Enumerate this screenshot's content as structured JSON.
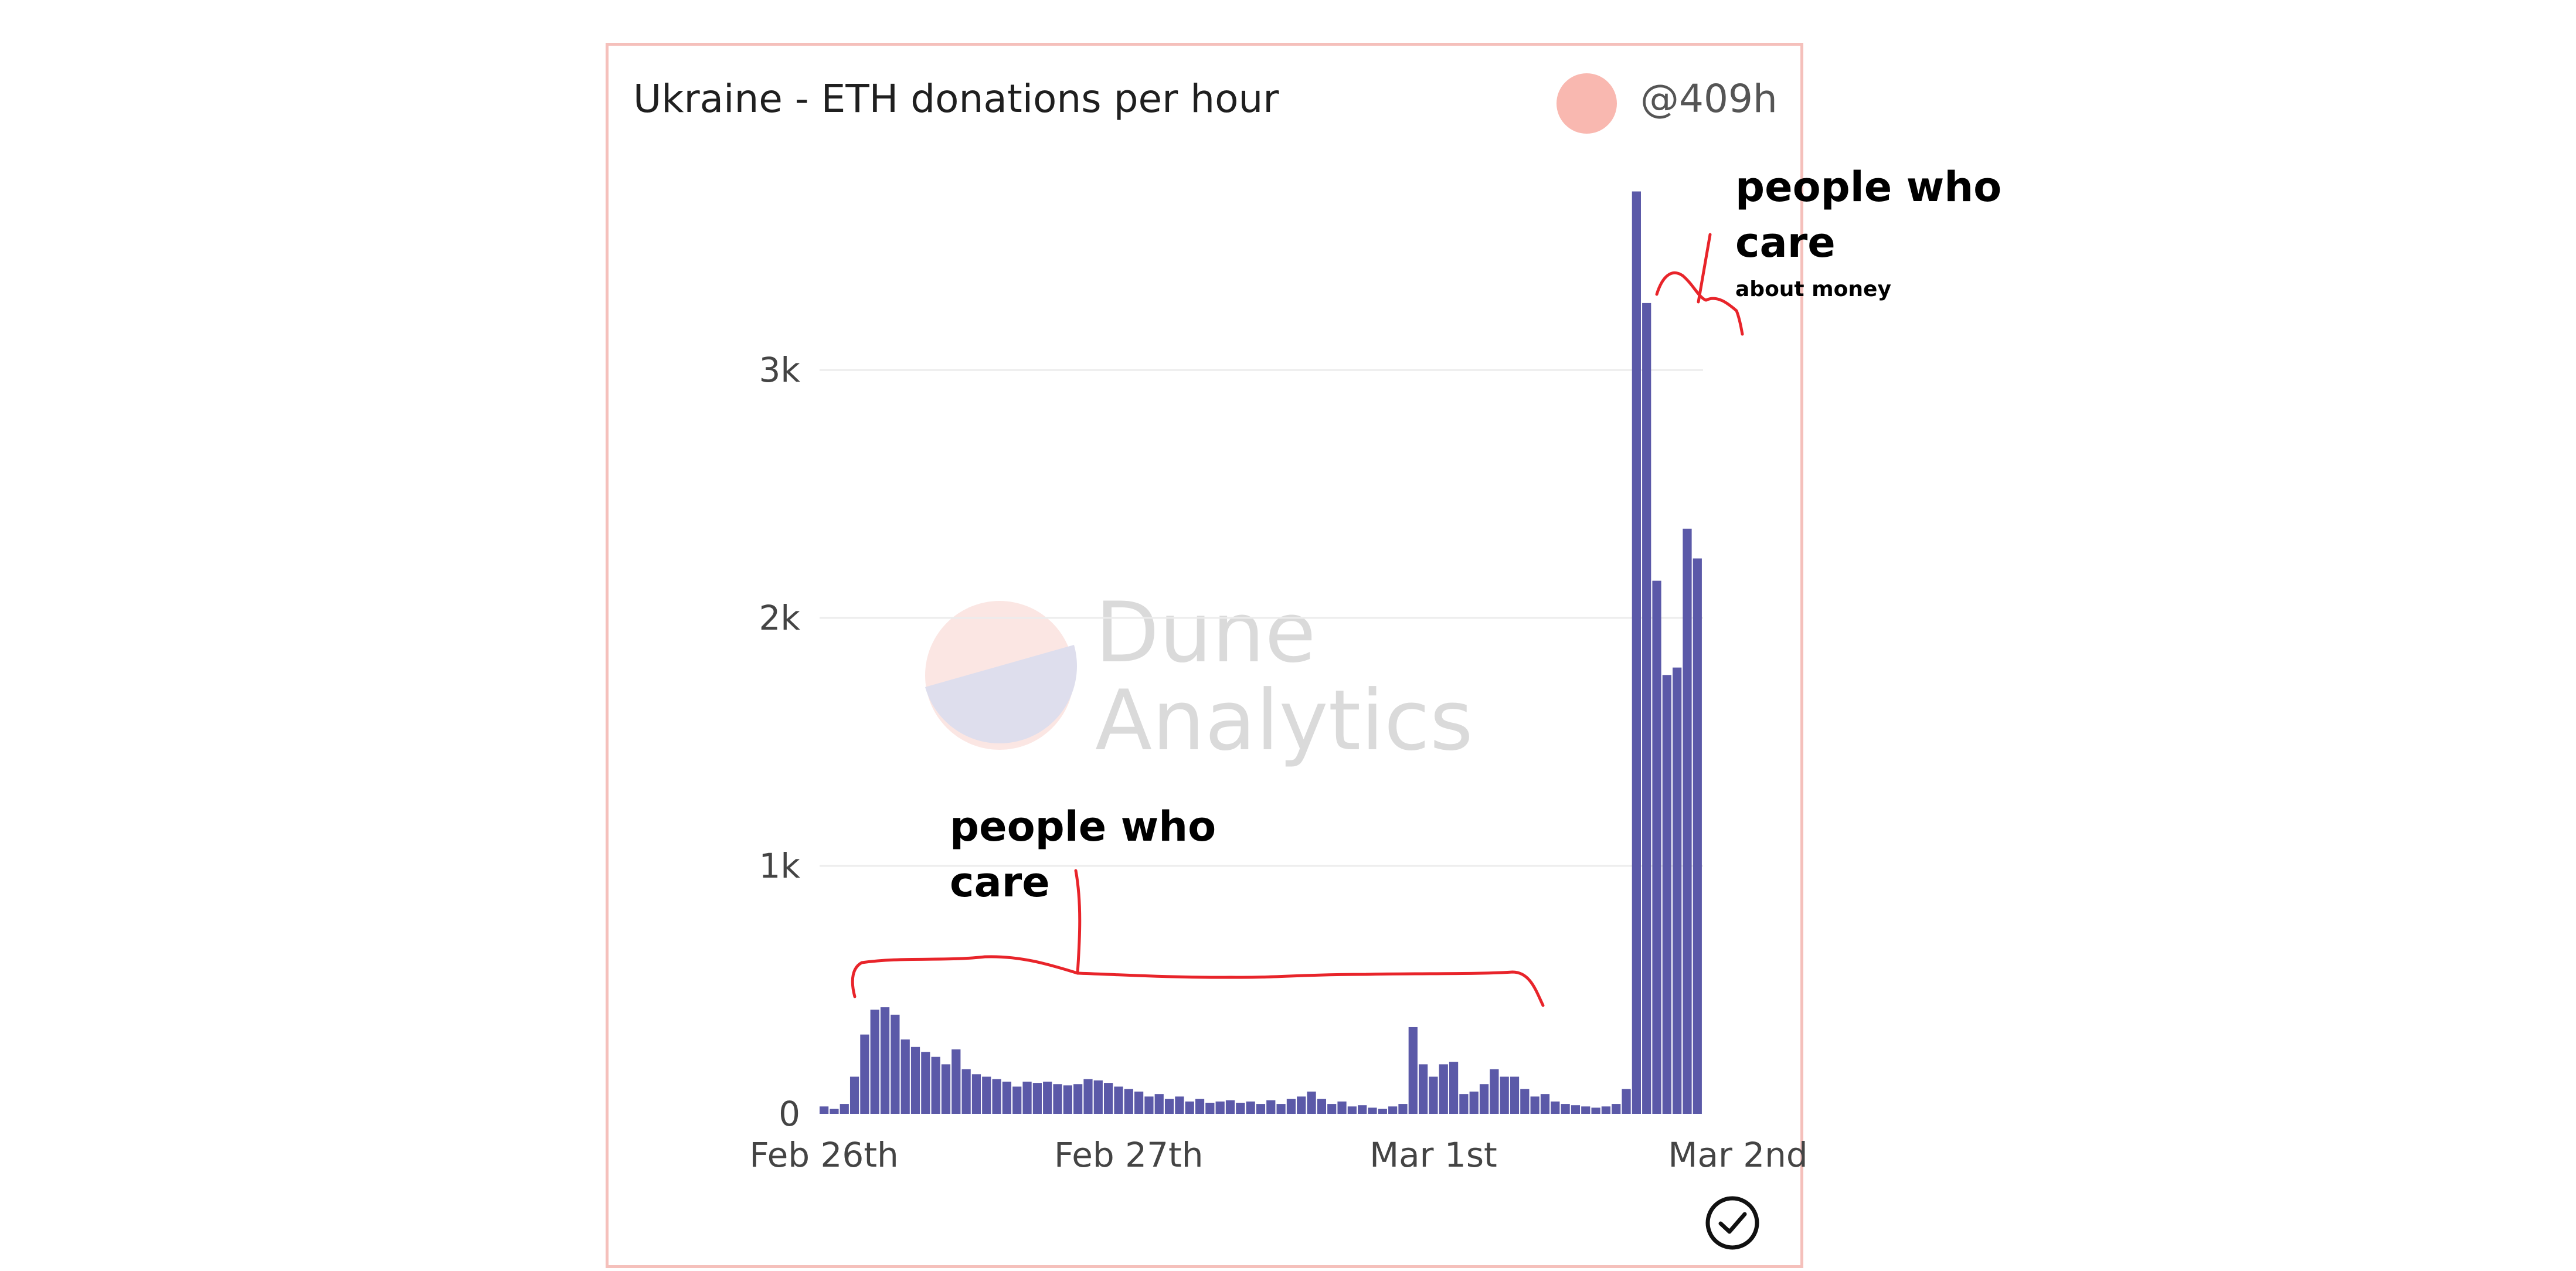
{
  "title": "Ukraine - ETH donations per hour",
  "author": {
    "handle": "@409h"
  },
  "watermark": {
    "line1": "Dune",
    "line2": "Analytics"
  },
  "annotations": {
    "top": "people who\ncare",
    "top_sub": "about money",
    "bottom": "people who\ncare"
  },
  "colors": {
    "bar": "#5b59a8",
    "grid": "#ececec",
    "axis_text": "#444444",
    "annotation_stroke": "#e8242a",
    "border": "#f5c0bb",
    "avatar": "#f9b8b0"
  },
  "chart_data": {
    "type": "bar",
    "title": "Ukraine - ETH donations per hour",
    "xlabel": "",
    "ylabel": "",
    "ylim": [
      0,
      3700
    ],
    "yticks": [
      0,
      1000,
      2000,
      3000
    ],
    "ytick_labels": [
      "0",
      "1k",
      "2k",
      "3k"
    ],
    "xtick_labels": [
      "Feb 26th",
      "Feb 27th",
      "Mar 1st",
      "Mar 2nd"
    ],
    "xtick_positions": [
      0,
      30,
      60,
      90
    ],
    "grid": true,
    "legend": "none",
    "values": [
      30,
      20,
      40,
      150,
      320,
      420,
      430,
      400,
      300,
      270,
      250,
      230,
      200,
      260,
      180,
      160,
      150,
      140,
      130,
      110,
      130,
      125,
      130,
      120,
      115,
      120,
      140,
      135,
      125,
      110,
      100,
      90,
      70,
      80,
      60,
      70,
      50,
      60,
      45,
      50,
      55,
      45,
      50,
      40,
      55,
      40,
      60,
      70,
      90,
      60,
      40,
      50,
      30,
      35,
      25,
      20,
      30,
      40,
      350,
      200,
      150,
      200,
      210,
      80,
      90,
      120,
      180,
      150,
      150,
      100,
      70,
      80,
      50,
      40,
      35,
      30,
      25,
      30,
      40,
      100,
      3720,
      3270,
      2150,
      1770,
      1800,
      2360,
      2240
    ]
  }
}
